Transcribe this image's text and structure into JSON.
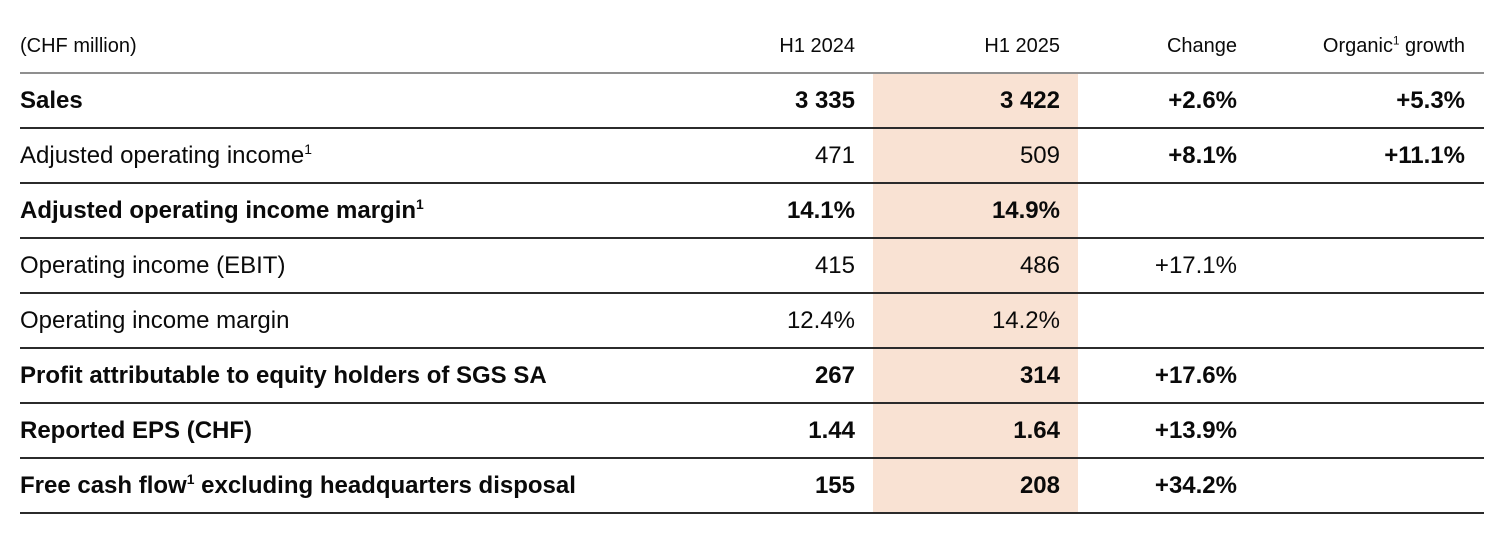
{
  "theme": {
    "highlight_color": "#f9e2d3",
    "header_rule_color": "#8f8f8f",
    "row_rule_color": "#2b2b2b",
    "text_color": "#0a0a0a"
  },
  "table": {
    "unit_label": "(CHF million)",
    "columns": [
      {
        "pre": "H1 2024",
        "sup": "",
        "post": "",
        "highlighted": false
      },
      {
        "pre": "H1 2025",
        "sup": "",
        "post": "",
        "highlighted": true
      },
      {
        "pre": "Change",
        "sup": "",
        "post": "",
        "highlighted": false
      },
      {
        "pre": "Organic",
        "sup": "1",
        "post": " growth",
        "highlighted": false
      }
    ],
    "rows": [
      {
        "label": {
          "pre": "Sales",
          "sup": "",
          "post": "",
          "bold": true
        },
        "h1_2024": {
          "text": "3 335",
          "bold": true
        },
        "h1_2025": {
          "text": "3 422",
          "bold": true
        },
        "change": {
          "text": "+2.6%",
          "bold": true
        },
        "organic_growth": {
          "text": "+5.3%",
          "bold": true
        }
      },
      {
        "label": {
          "pre": "Adjusted operating income",
          "sup": "1",
          "post": "",
          "bold": false
        },
        "h1_2024": {
          "text": "471",
          "bold": false
        },
        "h1_2025": {
          "text": "509",
          "bold": false
        },
        "change": {
          "text": "+8.1%",
          "bold": true
        },
        "organic_growth": {
          "text": "+11.1%",
          "bold": true
        }
      },
      {
        "label": {
          "pre": "Adjusted operating income margin",
          "sup": "1",
          "post": "",
          "bold": true
        },
        "h1_2024": {
          "text": "14.1%",
          "bold": true
        },
        "h1_2025": {
          "text": "14.9%",
          "bold": true
        },
        "change": {
          "text": "",
          "bold": false
        },
        "organic_growth": {
          "text": "",
          "bold": false
        }
      },
      {
        "label": {
          "pre": "Operating income (EBIT)",
          "sup": "",
          "post": "",
          "bold": false
        },
        "h1_2024": {
          "text": "415",
          "bold": false
        },
        "h1_2025": {
          "text": "486",
          "bold": false
        },
        "change": {
          "text": "+17.1%",
          "bold": false
        },
        "organic_growth": {
          "text": "",
          "bold": false
        }
      },
      {
        "label": {
          "pre": "Operating income margin",
          "sup": "",
          "post": "",
          "bold": false
        },
        "h1_2024": {
          "text": "12.4%",
          "bold": false
        },
        "h1_2025": {
          "text": "14.2%",
          "bold": false
        },
        "change": {
          "text": "",
          "bold": false
        },
        "organic_growth": {
          "text": "",
          "bold": false
        }
      },
      {
        "label": {
          "pre": "Profit attributable to equity holders of SGS SA",
          "sup": "",
          "post": "",
          "bold": true
        },
        "h1_2024": {
          "text": "267",
          "bold": true
        },
        "h1_2025": {
          "text": "314",
          "bold": true
        },
        "change": {
          "text": "+17.6%",
          "bold": true
        },
        "organic_growth": {
          "text": "",
          "bold": false
        }
      },
      {
        "label": {
          "pre": "Reported EPS (CHF)",
          "sup": "",
          "post": "",
          "bold": true
        },
        "h1_2024": {
          "text": "1.44",
          "bold": true
        },
        "h1_2025": {
          "text": "1.64",
          "bold": true
        },
        "change": {
          "text": "+13.9%",
          "bold": true
        },
        "organic_growth": {
          "text": "",
          "bold": false
        }
      },
      {
        "label": {
          "pre": "Free cash flow",
          "sup": "1",
          "post": " excluding headquarters disposal",
          "bold": true
        },
        "h1_2024": {
          "text": "155",
          "bold": true
        },
        "h1_2025": {
          "text": "208",
          "bold": true
        },
        "change": {
          "text": "+34.2%",
          "bold": true
        },
        "organic_growth": {
          "text": "",
          "bold": false
        }
      }
    ]
  }
}
